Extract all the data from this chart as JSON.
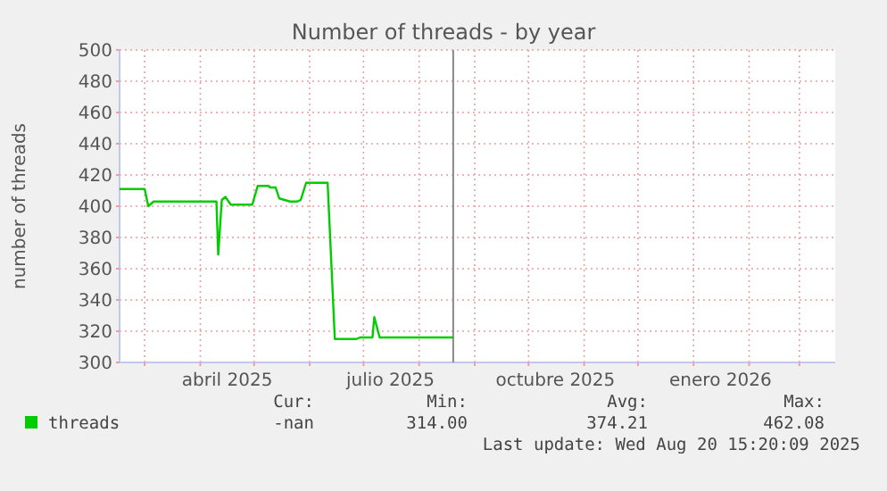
{
  "chart_data": {
    "type": "line",
    "title": "Number of threads - by year",
    "ylabel": "number of threads",
    "x": [
      "2025-02-15",
      "2025-03-01",
      "2025-03-03",
      "2025-03-06",
      "2025-04-10",
      "2025-04-11",
      "2025-04-13",
      "2025-04-15",
      "2025-04-18",
      "2025-04-30",
      "2025-05-03",
      "2025-05-09",
      "2025-05-10",
      "2025-05-13",
      "2025-05-15",
      "2025-05-21",
      "2025-05-25",
      "2025-05-27",
      "2025-05-30",
      "2025-06-11",
      "2025-06-15",
      "2025-06-27",
      "2025-06-29",
      "2025-07-06",
      "2025-07-07",
      "2025-07-10",
      "2025-08-20"
    ],
    "series": [
      {
        "name": "threads",
        "color": "#00cc00",
        "values": [
          411,
          411,
          400,
          403,
          403,
          369,
          404,
          406,
          401,
          401,
          413,
          413,
          412,
          412,
          405,
          403,
          403,
          404,
          415,
          415,
          315,
          315,
          316,
          316,
          329,
          316,
          316
        ]
      }
    ],
    "xlim": [
      "2025-02-15",
      "2026-03-21"
    ],
    "xticks": [
      {
        "value": "2025-03-01",
        "label": null
      },
      {
        "value": "2025-04-01",
        "label": null
      },
      {
        "value": "2025-05-01",
        "label": null
      },
      {
        "value": "2025-06-01",
        "label": null
      },
      {
        "value": "2025-07-01",
        "label": null
      },
      {
        "value": "2025-08-01",
        "label": null
      },
      {
        "value": "2025-09-01",
        "label": null
      },
      {
        "value": "2025-10-01",
        "label": null
      },
      {
        "value": "2025-11-01",
        "label": null
      },
      {
        "value": "2025-12-01",
        "label": null
      },
      {
        "value": "2026-01-01",
        "label": null
      },
      {
        "value": "2026-02-01",
        "label": null
      },
      {
        "value": "2026-03-01",
        "label": null
      },
      {
        "value": "2025-04-16",
        "label": "abril 2025"
      },
      {
        "value": "2025-07-16",
        "label": "julio 2025"
      },
      {
        "value": "2025-10-16",
        "label": "octubre 2025"
      },
      {
        "value": "2026-01-16",
        "label": "enero 2026"
      }
    ],
    "ylim": [
      300,
      500
    ],
    "yticks": [
      300,
      320,
      340,
      360,
      380,
      400,
      420,
      440,
      460,
      480,
      500
    ],
    "grid": true,
    "legend": "bottom left",
    "marker": "none",
    "line_style": "solid",
    "ref_lines": [
      {
        "axis": "x",
        "value": "2025-08-20",
        "color": "#888888"
      }
    ],
    "annotations": [
      "Cur:",
      "Min:",
      "Avg:",
      "Max:",
      "-nan",
      "314.00",
      "374.21",
      "462.08",
      "Last update: Wed Aug 20 15:20:09 2025"
    ]
  }
}
